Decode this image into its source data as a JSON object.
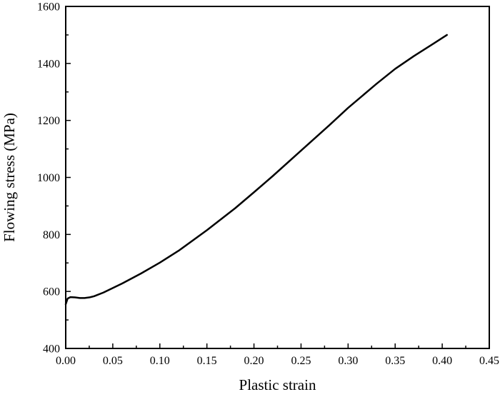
{
  "chart_data": {
    "type": "line",
    "title": "",
    "xlabel": "Plastic strain",
    "ylabel": "Flowing stress (MPa)",
    "xlim": [
      0,
      0.45
    ],
    "ylim": [
      400,
      1600
    ],
    "x_ticks": [
      "0.00",
      "0.05",
      "0.10",
      "0.15",
      "0.20",
      "0.25",
      "0.30",
      "0.35",
      "0.40",
      "0.45"
    ],
    "y_ticks": [
      "400",
      "600",
      "800",
      "1000",
      "1200",
      "1400",
      "1600"
    ],
    "grid": false,
    "legend": "none",
    "line_color": "#000000",
    "series": [
      {
        "x": [
          0.0,
          0.002,
          0.005,
          0.01,
          0.015,
          0.02,
          0.025,
          0.03,
          0.04,
          0.05,
          0.06,
          0.08,
          0.1,
          0.12,
          0.15,
          0.18,
          0.2,
          0.22,
          0.25,
          0.28,
          0.3,
          0.33,
          0.35,
          0.37,
          0.39,
          0.405
        ],
        "values": [
          555,
          575,
          580,
          579,
          577,
          577,
          579,
          583,
          596,
          612,
          628,
          663,
          701,
          743,
          815,
          892,
          948,
          1005,
          1094,
          1183,
          1244,
          1328,
          1381,
          1426,
          1468,
          1500
        ]
      }
    ]
  }
}
